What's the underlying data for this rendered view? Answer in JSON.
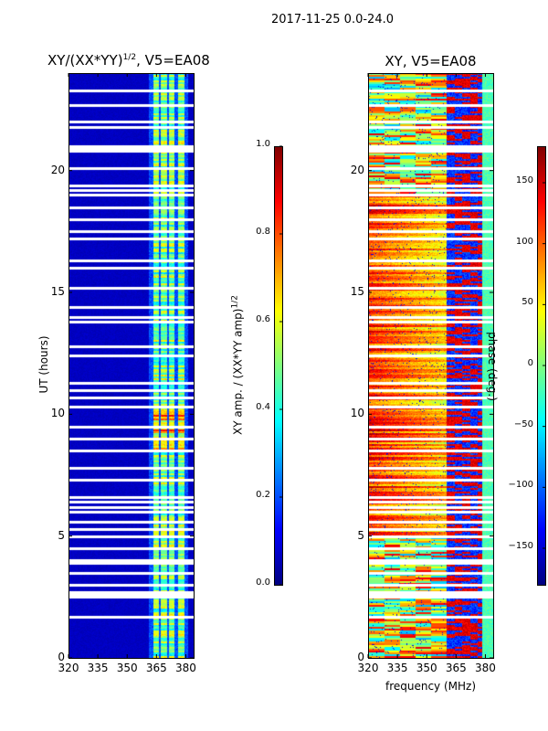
{
  "chart_data": [
    {
      "type": "heatmap",
      "title_main": "XY/(XX*YY)",
      "title_sup": "1/2",
      "title_tail": ", V5=EA08",
      "xlabel": "",
      "ylabel": "UT (hours)",
      "xlim": [
        320,
        384
      ],
      "ylim": [
        0,
        24
      ],
      "xticks": [
        "320",
        "335",
        "350",
        "365",
        "380"
      ],
      "xtick_values": [
        320,
        335,
        350,
        365,
        380
      ],
      "yticks": [
        "0",
        "5",
        "10",
        "15",
        "20"
      ],
      "ytick_values": [
        0,
        5,
        10,
        15,
        20
      ],
      "colorbar": {
        "label_main": "XY amp. / (XX*YY amp)",
        "label_sup": "1/2",
        "range": [
          0,
          1
        ],
        "ticks": [
          "0.0",
          "0.2",
          "0.4",
          "0.6",
          "0.8",
          "1.0"
        ],
        "tick_values": [
          0,
          0.2,
          0.4,
          0.6,
          0.8,
          1.0
        ]
      },
      "colormap": "jet",
      "description_values": {
        "background_level": 0.05,
        "bright_bands_MHz": [
          [
            363,
            366
          ],
          [
            367,
            370
          ],
          [
            371,
            374
          ],
          [
            376,
            379
          ]
        ],
        "band_level": 0.5,
        "peak_hours": [
          8.5,
          10.5
        ],
        "peak_level": 0.8
      }
    },
    {
      "type": "heatmap",
      "title": "XY, V5=EA08",
      "xlabel": "frequency (MHz)",
      "ylabel": "",
      "xlim": [
        320,
        384
      ],
      "ylim": [
        0,
        24
      ],
      "xticks": [
        "320",
        "335",
        "350",
        "365",
        "380"
      ],
      "xtick_values": [
        320,
        335,
        350,
        365,
        380
      ],
      "yticks": [
        "0",
        "5",
        "10",
        "15",
        "20"
      ],
      "ytick_values": [
        0,
        5,
        10,
        15,
        20
      ],
      "colorbar": {
        "label": "phase (deg.)",
        "range": [
          -180,
          180
        ],
        "ticks": [
          "−150",
          "−100",
          "−50",
          "0",
          "50",
          "100",
          "150"
        ],
        "tick_values": [
          -150,
          -100,
          -50,
          0,
          50,
          100,
          150
        ]
      },
      "colormap": "jet"
    }
  ],
  "suptitle": "2017-11-25 0.0-24.0",
  "flagged_hours": [
    1.7,
    2.5,
    2.6,
    2.7,
    3.0,
    3.5,
    3.9,
    4.0,
    4.5,
    5.0,
    5.3,
    5.6,
    6.0,
    6.2,
    6.4,
    6.6,
    7.3,
    7.8,
    8.5,
    9.0,
    9.5,
    10.3,
    10.7,
    11.0,
    11.3,
    12.4,
    12.8,
    13.8,
    14.0,
    14.4,
    15.2,
    16.0,
    16.3,
    17.2,
    17.5,
    18.0,
    18.5,
    19.0,
    19.2,
    19.4,
    20.1,
    20.8,
    20.9,
    21.0,
    21.8,
    22.0,
    22.7,
    23.3
  ]
}
